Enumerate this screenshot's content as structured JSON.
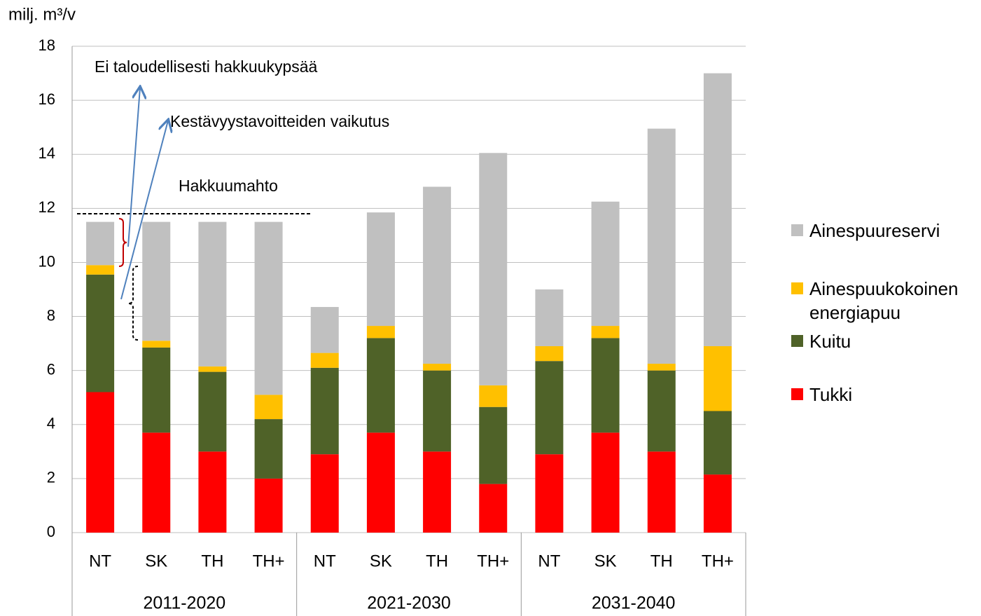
{
  "chart_data": {
    "type": "stacked-bar",
    "y_label": "milj. m³/v",
    "categories": [
      "NT",
      "SK",
      "TH",
      "TH+",
      "NT",
      "SK",
      "TH",
      "TH+",
      "NT",
      "SK",
      "TH",
      "TH+"
    ],
    "groups": [
      "2011-2020",
      "2021-2030",
      "2031-2040"
    ],
    "series": [
      {
        "name": "Tukki",
        "color": "#ff0000",
        "values": [
          5.2,
          3.7,
          3.0,
          2.0,
          2.9,
          3.7,
          3.0,
          1.8,
          2.9,
          3.7,
          3.0,
          2.15
        ]
      },
      {
        "name": "Kuitu",
        "color": "#4f6228",
        "values": [
          4.35,
          3.15,
          2.95,
          2.2,
          3.2,
          3.5,
          3.0,
          2.85,
          3.45,
          3.5,
          3.0,
          2.35
        ]
      },
      {
        "name": "Ainespuukokoinen energiapuu",
        "color": "#ffc000",
        "values": [
          0.35,
          0.25,
          0.2,
          0.9,
          0.55,
          0.45,
          0.25,
          0.8,
          0.55,
          0.45,
          0.25,
          2.4
        ]
      },
      {
        "name": "Ainespuureservi",
        "color": "#c0c0c0",
        "values": [
          1.6,
          4.4,
          5.35,
          6.4,
          1.7,
          4.2,
          6.55,
          8.6,
          2.1,
          4.6,
          8.7,
          10.1
        ]
      }
    ],
    "ylim": [
      0,
      18
    ],
    "yticks": [
      0,
      2,
      4,
      6,
      8,
      10,
      12,
      14,
      16,
      18
    ],
    "grid": true,
    "annotations": [
      {
        "text": "Ei taloudellisesti hakkuukypsää"
      },
      {
        "text": "Kestävyystavoitteiden vaikutus"
      },
      {
        "text": "Hakkuumahto",
        "value": 11.8
      }
    ]
  }
}
